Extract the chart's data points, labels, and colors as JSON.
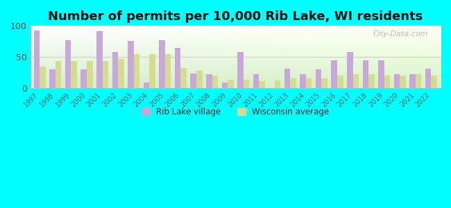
{
  "title": "Number of permits per 10,000 Rib Lake, WI residents",
  "years": [
    1997,
    1998,
    1999,
    2000,
    2001,
    2002,
    2003,
    2004,
    2005,
    2006,
    2007,
    2008,
    2009,
    2010,
    2011,
    2012,
    2013,
    2014,
    2015,
    2016,
    2017,
    2018,
    2019,
    2020,
    2021,
    2022
  ],
  "rib_lake": [
    93,
    30,
    77,
    30,
    92,
    58,
    76,
    9,
    77,
    65,
    23,
    22,
    9,
    58,
    22,
    0,
    31,
    22,
    30,
    45,
    58,
    45,
    45,
    22,
    22,
    31
  ],
  "wisconsin": [
    35,
    43,
    43,
    43,
    43,
    47,
    55,
    55,
    55,
    32,
    28,
    20,
    13,
    13,
    11,
    12,
    15,
    15,
    15,
    20,
    22,
    22,
    20,
    20,
    22,
    20
  ],
  "rib_lake_color": "#c8a8d8",
  "wisconsin_color": "#d4dc90",
  "background_color": "#00ffff",
  "ylim": [
    0,
    100
  ],
  "yticks": [
    0,
    50,
    100
  ],
  "title_fontsize": 13,
  "bar_width": 0.38,
  "legend_label_rib": "Rib Lake village",
  "legend_label_wi": "Wisconsin average"
}
